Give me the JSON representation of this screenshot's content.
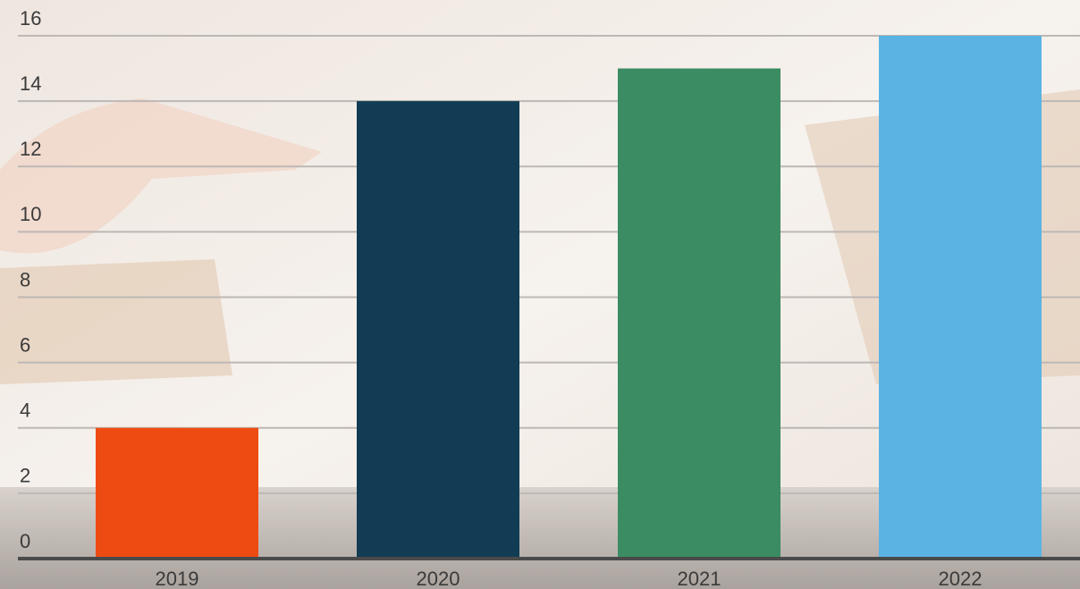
{
  "chart_data": {
    "type": "bar",
    "categories": [
      "2019",
      "2020",
      "2021",
      "2022"
    ],
    "values": [
      4,
      14,
      15,
      16
    ],
    "colors": [
      "#ee4b12",
      "#113c54",
      "#3b8c62",
      "#5ab3e3"
    ],
    "ylim": [
      0,
      16
    ],
    "yticks": [
      0,
      2,
      4,
      6,
      8,
      10,
      12,
      14,
      16
    ],
    "grid": true
  }
}
